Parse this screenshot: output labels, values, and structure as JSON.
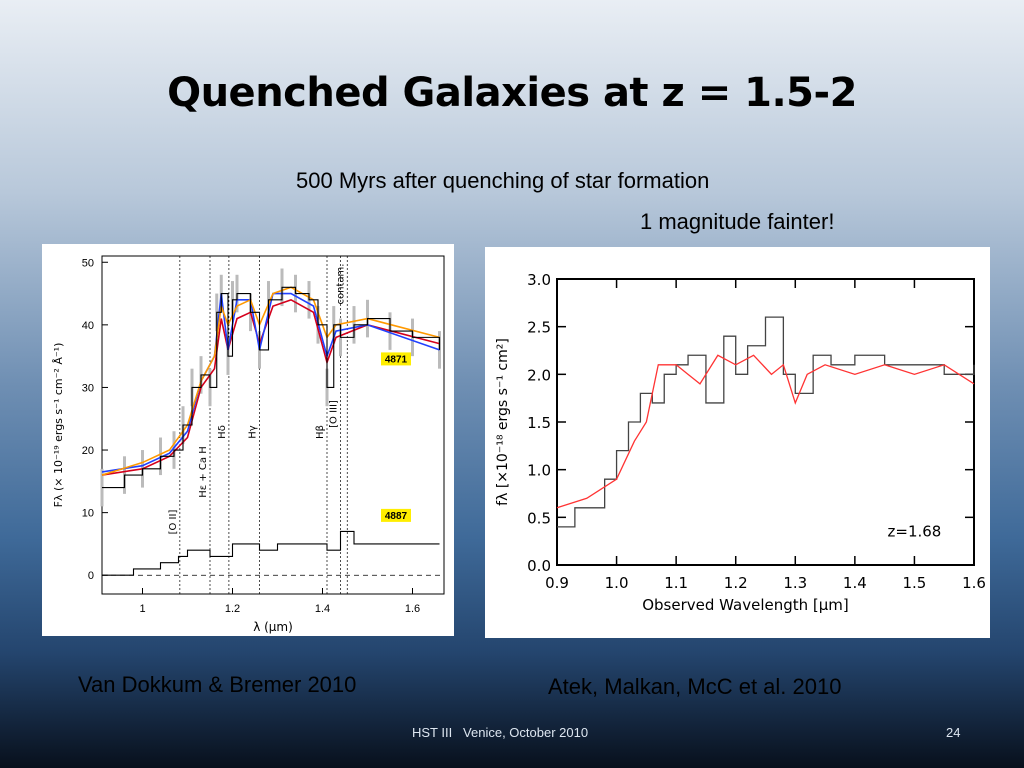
{
  "slide": {
    "title": "Quenched Galaxies at z = 1.5-2",
    "subtitle": "500 Myrs after quenching of star formation",
    "note": "1 magnitude fainter!",
    "caption_left": "Van Dokkum & Bremer 2010",
    "caption_right": "Atek, Malkan, McC et al. 2010",
    "footer_text": "HST III   Venice, October 2010",
    "page_number": "24"
  },
  "chart_data": [
    {
      "type": "line",
      "xlabel": "λ (μm)",
      "ylabel": "Fλ (× 10⁻¹⁹ ergs s⁻¹ cm⁻² Å⁻¹)",
      "xlim": [
        0.91,
        1.67
      ],
      "ylim": [
        -3,
        51
      ],
      "xticks": [
        1,
        1.2,
        1.4,
        1.6
      ],
      "xtick_labels": [
        "1",
        "1.2",
        "1.4",
        "1.6"
      ],
      "yticks": [
        0,
        10,
        20,
        30,
        40,
        50
      ],
      "ytick_labels": [
        "0",
        "10",
        "20",
        "30",
        "40",
        "50"
      ],
      "lines": [
        {
          "label": "[O II]",
          "x": 1.083
        },
        {
          "label": "Hε + Ca H",
          "x": 1.15
        },
        {
          "label": "Hδ",
          "x": 1.192
        },
        {
          "label": "Hγ",
          "x": 1.26
        },
        {
          "label": "Hβ",
          "x": 1.41
        },
        {
          "label": "[O III]",
          "x": 1.44
        },
        {
          "label": "contam.",
          "x": 1.455
        }
      ],
      "annotations": [
        "4871",
        "4887"
      ],
      "annotation_color": "#ffee00",
      "series": [
        {
          "name": "4871",
          "color": "#000000",
          "x": [
            0.91,
            0.96,
            1.0,
            1.04,
            1.07,
            1.09,
            1.11,
            1.13,
            1.15,
            1.165,
            1.175,
            1.19,
            1.2,
            1.21,
            1.24,
            1.26,
            1.28,
            1.31,
            1.34,
            1.37,
            1.39,
            1.41,
            1.425,
            1.44,
            1.47,
            1.5,
            1.55,
            1.6,
            1.66
          ],
          "y": [
            14,
            16,
            17,
            19,
            20,
            24,
            30,
            32,
            30,
            42,
            45,
            35,
            44,
            45,
            42,
            36,
            44,
            46,
            45,
            44,
            40,
            30,
            40,
            38,
            40,
            41,
            39,
            38,
            36
          ]
        },
        {
          "name": "4887",
          "color": "#000000",
          "x": [
            0.91,
            0.98,
            1.04,
            1.08,
            1.1,
            1.15,
            1.2,
            1.26,
            1.3,
            1.35,
            1.41,
            1.44,
            1.47,
            1.55,
            1.66
          ],
          "y": [
            0,
            1,
            2,
            3,
            4,
            3,
            5,
            4,
            5,
            5,
            4,
            7,
            5,
            5,
            5
          ]
        }
      ],
      "models": [
        {
          "color": "#d4001c",
          "x": [
            0.91,
            1.0,
            1.06,
            1.1,
            1.13,
            1.16,
            1.175,
            1.19,
            1.21,
            1.24,
            1.26,
            1.29,
            1.33,
            1.38,
            1.41,
            1.43,
            1.5,
            1.66
          ],
          "y": [
            16,
            17,
            19,
            22,
            30,
            33,
            41,
            36,
            41,
            42,
            37,
            43,
            44,
            42,
            34,
            38,
            40,
            37
          ]
        },
        {
          "color": "#2040ff",
          "x": [
            0.91,
            1.0,
            1.06,
            1.1,
            1.13,
            1.16,
            1.175,
            1.19,
            1.21,
            1.24,
            1.26,
            1.29,
            1.33,
            1.38,
            1.41,
            1.43,
            1.5,
            1.66
          ],
          "y": [
            16.5,
            17.5,
            19.5,
            23,
            31,
            35,
            45,
            36,
            44,
            44,
            36,
            45,
            45,
            43,
            35,
            39,
            40,
            36
          ]
        },
        {
          "color": "#ff9900",
          "x": [
            0.91,
            1.0,
            1.06,
            1.1,
            1.13,
            1.16,
            1.175,
            1.19,
            1.21,
            1.24,
            1.26,
            1.29,
            1.33,
            1.38,
            1.41,
            1.43,
            1.5,
            1.66
          ],
          "y": [
            16,
            18,
            20,
            24,
            31,
            35,
            43,
            40,
            43,
            44,
            40,
            45,
            46,
            44,
            38,
            40,
            41,
            38
          ]
        }
      ]
    },
    {
      "type": "line",
      "xlabel": "Observed Wavelength [μm]",
      "ylabel": "fλ [×10⁻¹⁸ ergs s⁻¹ cm²]",
      "xlim": [
        0.9,
        1.6
      ],
      "ylim": [
        0.0,
        3.0
      ],
      "xticks": [
        0.9,
        1.0,
        1.1,
        1.2,
        1.3,
        1.4,
        1.5,
        1.6
      ],
      "xtick_labels": [
        "0.9",
        "1.0",
        "1.1",
        "1.2",
        "1.3",
        "1.4",
        "1.5",
        "1.6"
      ],
      "yticks": [
        0.0,
        0.5,
        1.0,
        1.5,
        2.0,
        2.5,
        3.0
      ],
      "ytick_labels": [
        "0.0",
        "0.5",
        "1.0",
        "1.5",
        "2.0",
        "2.5",
        "3.0"
      ],
      "annotation": "z=1.68",
      "series": [
        {
          "name": "",
          "color": "#444444",
          "x": [
            0.9,
            0.93,
            0.96,
            0.98,
            1.0,
            1.02,
            1.04,
            1.06,
            1.08,
            1.1,
            1.12,
            1.15,
            1.18,
            1.2,
            1.22,
            1.25,
            1.28,
            1.3,
            1.33,
            1.36,
            1.4,
            1.45,
            1.5,
            1.55,
            1.6
          ],
          "y": [
            0.4,
            0.6,
            0.6,
            0.9,
            1.2,
            1.5,
            1.8,
            1.7,
            2.0,
            2.1,
            2.2,
            1.7,
            2.4,
            2.0,
            2.3,
            2.6,
            2.0,
            1.8,
            2.2,
            2.1,
            2.2,
            2.1,
            2.1,
            2.0,
            2.1
          ]
        },
        {
          "name": "",
          "color": "#ff3333",
          "x": [
            0.9,
            0.95,
            1.0,
            1.03,
            1.05,
            1.07,
            1.1,
            1.12,
            1.14,
            1.17,
            1.2,
            1.23,
            1.26,
            1.28,
            1.3,
            1.32,
            1.35,
            1.4,
            1.45,
            1.5,
            1.55,
            1.6
          ],
          "y": [
            0.6,
            0.7,
            0.9,
            1.3,
            1.5,
            2.1,
            2.1,
            2.0,
            1.9,
            2.2,
            2.1,
            2.2,
            2.0,
            2.1,
            1.7,
            2.0,
            2.1,
            2.0,
            2.1,
            2.0,
            2.1,
            1.9
          ]
        }
      ]
    }
  ]
}
